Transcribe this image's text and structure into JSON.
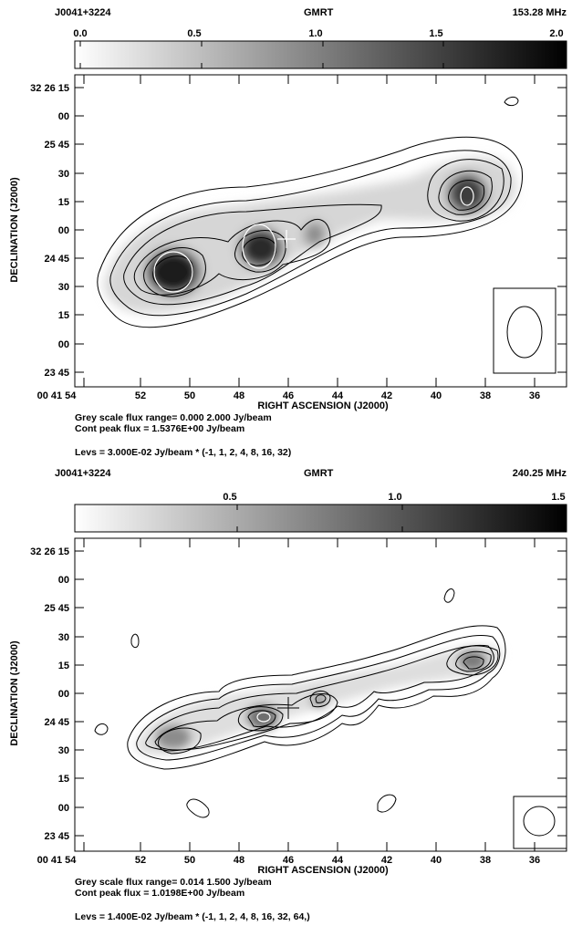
{
  "panels": [
    {
      "source": "J0041+3224",
      "telescope": "GMRT",
      "frequency": "153.28 MHz",
      "colorbar_ticks": [
        "0.0",
        "0.5",
        "1.0",
        "1.5",
        "2.0"
      ],
      "dec_ticks": [
        "32 26 15",
        "00",
        "25 45",
        "30",
        "15",
        "00",
        "24 45",
        "30",
        "15",
        "00",
        "23 45"
      ],
      "ra_ticks": [
        "00 41 54",
        "52",
        "50",
        "48",
        "46",
        "44",
        "42",
        "40",
        "38",
        "36"
      ],
      "xlabel": "RIGHT ASCENSION (J2000)",
      "ylabel": "DECLINATION (J2000)",
      "flux_range": "Grey scale flux range= 0.000 2.000 Jy/beam",
      "peak_flux": "Cont peak flux =  1.5376E+00 Jy/beam",
      "levels": "Levs = 3.000E-02 Jy/beam * (-1, 1, 2, 4, 8, 16, 32)"
    },
    {
      "source": "J0041+3224",
      "telescope": "GMRT",
      "frequency": "240.25 MHz",
      "colorbar_ticks": [
        "0.5",
        "1.0",
        "1.5"
      ],
      "dec_ticks": [
        "32 26 15",
        "00",
        "25 45",
        "30",
        "15",
        "00",
        "24 45",
        "30",
        "15",
        "00",
        "23 45"
      ],
      "ra_ticks": [
        "00 41 54",
        "52",
        "50",
        "48",
        "46",
        "44",
        "42",
        "40",
        "38",
        "36"
      ],
      "xlabel": "RIGHT ASCENSION (J2000)",
      "ylabel": "DECLINATION (J2000)",
      "flux_range": "Grey scale flux range= 0.014 1.500 Jy/beam",
      "peak_flux": "Cont peak flux =  1.0198E+00 Jy/beam",
      "levels": "Levs = 1.400E-02 Jy/beam * (-1, 1, 2, 4, 8, 16, 32, 64,)"
    }
  ]
}
